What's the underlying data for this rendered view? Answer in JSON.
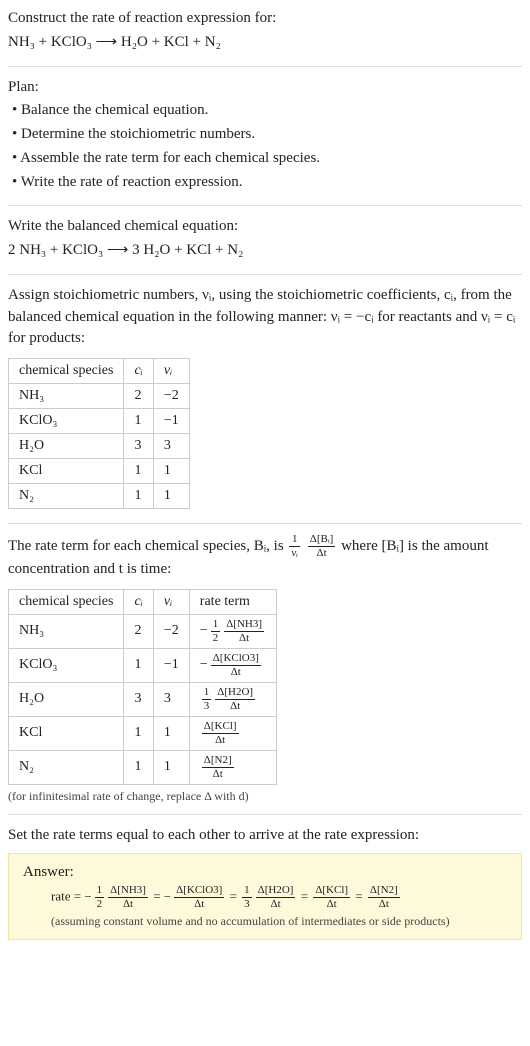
{
  "header": {
    "prompt": "Construct the rate of reaction expression for:",
    "equation_unbalanced": "NH₃ + KClO₃  ⟶  H₂O + KCl + N₂"
  },
  "plan": {
    "title": "Plan:",
    "items": [
      "• Balance the chemical equation.",
      "• Determine the stoichiometric numbers.",
      "• Assemble the rate term for each chemical species.",
      "• Write the rate of reaction expression."
    ]
  },
  "balanced": {
    "intro": "Write the balanced chemical equation:",
    "equation": "2 NH₃ + KClO₃  ⟶  3 H₂O + KCl + N₂"
  },
  "stoich": {
    "intro_a": "Assign stoichiometric numbers, νᵢ, using the stoichiometric coefficients, cᵢ, from the balanced chemical equation in the following manner: νᵢ = −cᵢ for reactants and νᵢ = cᵢ for products:",
    "headers": [
      "chemical species",
      "cᵢ",
      "νᵢ"
    ],
    "rows": [
      {
        "sp": "NH₃",
        "c": "2",
        "v": "−2"
      },
      {
        "sp": "KClO₃",
        "c": "1",
        "v": "−1"
      },
      {
        "sp": "H₂O",
        "c": "3",
        "v": "3"
      },
      {
        "sp": "KCl",
        "c": "1",
        "v": "1"
      },
      {
        "sp": "N₂",
        "c": "1",
        "v": "1"
      }
    ]
  },
  "rate_terms": {
    "intro_html": "The rate term for each chemical species, Bᵢ, is ",
    "intro_after": " where [Bᵢ] is the amount concentration and t is time:",
    "headers": [
      "chemical species",
      "cᵢ",
      "νᵢ",
      "rate term"
    ],
    "rows": [
      {
        "sp": "NH₃",
        "c": "2",
        "v": "−2",
        "neg": true,
        "coef_num": "1",
        "coef_den": "2",
        "d_num": "Δ[NH3]",
        "d_den": "Δt"
      },
      {
        "sp": "KClO₃",
        "c": "1",
        "v": "−1",
        "neg": true,
        "coef_num": "",
        "coef_den": "",
        "d_num": "Δ[KClO3]",
        "d_den": "Δt"
      },
      {
        "sp": "H₂O",
        "c": "3",
        "v": "3",
        "neg": false,
        "coef_num": "1",
        "coef_den": "3",
        "d_num": "Δ[H2O]",
        "d_den": "Δt"
      },
      {
        "sp": "KCl",
        "c": "1",
        "v": "1",
        "neg": false,
        "coef_num": "",
        "coef_den": "",
        "d_num": "Δ[KCl]",
        "d_den": "Δt"
      },
      {
        "sp": "N₂",
        "c": "1",
        "v": "1",
        "neg": false,
        "coef_num": "",
        "coef_den": "",
        "d_num": "Δ[N2]",
        "d_den": "Δt"
      }
    ],
    "note": "(for infinitesimal rate of change, replace Δ with d)"
  },
  "conclusion": {
    "intro": "Set the rate terms equal to each other to arrive at the rate expression:"
  },
  "answer": {
    "title": "Answer:",
    "rate_prefix": "rate = ",
    "terms": [
      {
        "neg": true,
        "coef_num": "1",
        "coef_den": "2",
        "d_num": "Δ[NH3]",
        "d_den": "Δt"
      },
      {
        "neg": true,
        "coef_num": "",
        "coef_den": "",
        "d_num": "Δ[KClO3]",
        "d_den": "Δt"
      },
      {
        "neg": false,
        "coef_num": "1",
        "coef_den": "3",
        "d_num": "Δ[H2O]",
        "d_den": "Δt"
      },
      {
        "neg": false,
        "coef_num": "",
        "coef_den": "",
        "d_num": "Δ[KCl]",
        "d_den": "Δt"
      },
      {
        "neg": false,
        "coef_num": "",
        "coef_den": "",
        "d_num": "Δ[N2]",
        "d_den": "Δt"
      }
    ],
    "note": "(assuming constant volume and no accumulation of intermediates or side products)"
  },
  "generic_rate": {
    "coef_num": "1",
    "coef_den": "νᵢ",
    "d_num": "Δ[Bᵢ]",
    "d_den": "Δt"
  }
}
